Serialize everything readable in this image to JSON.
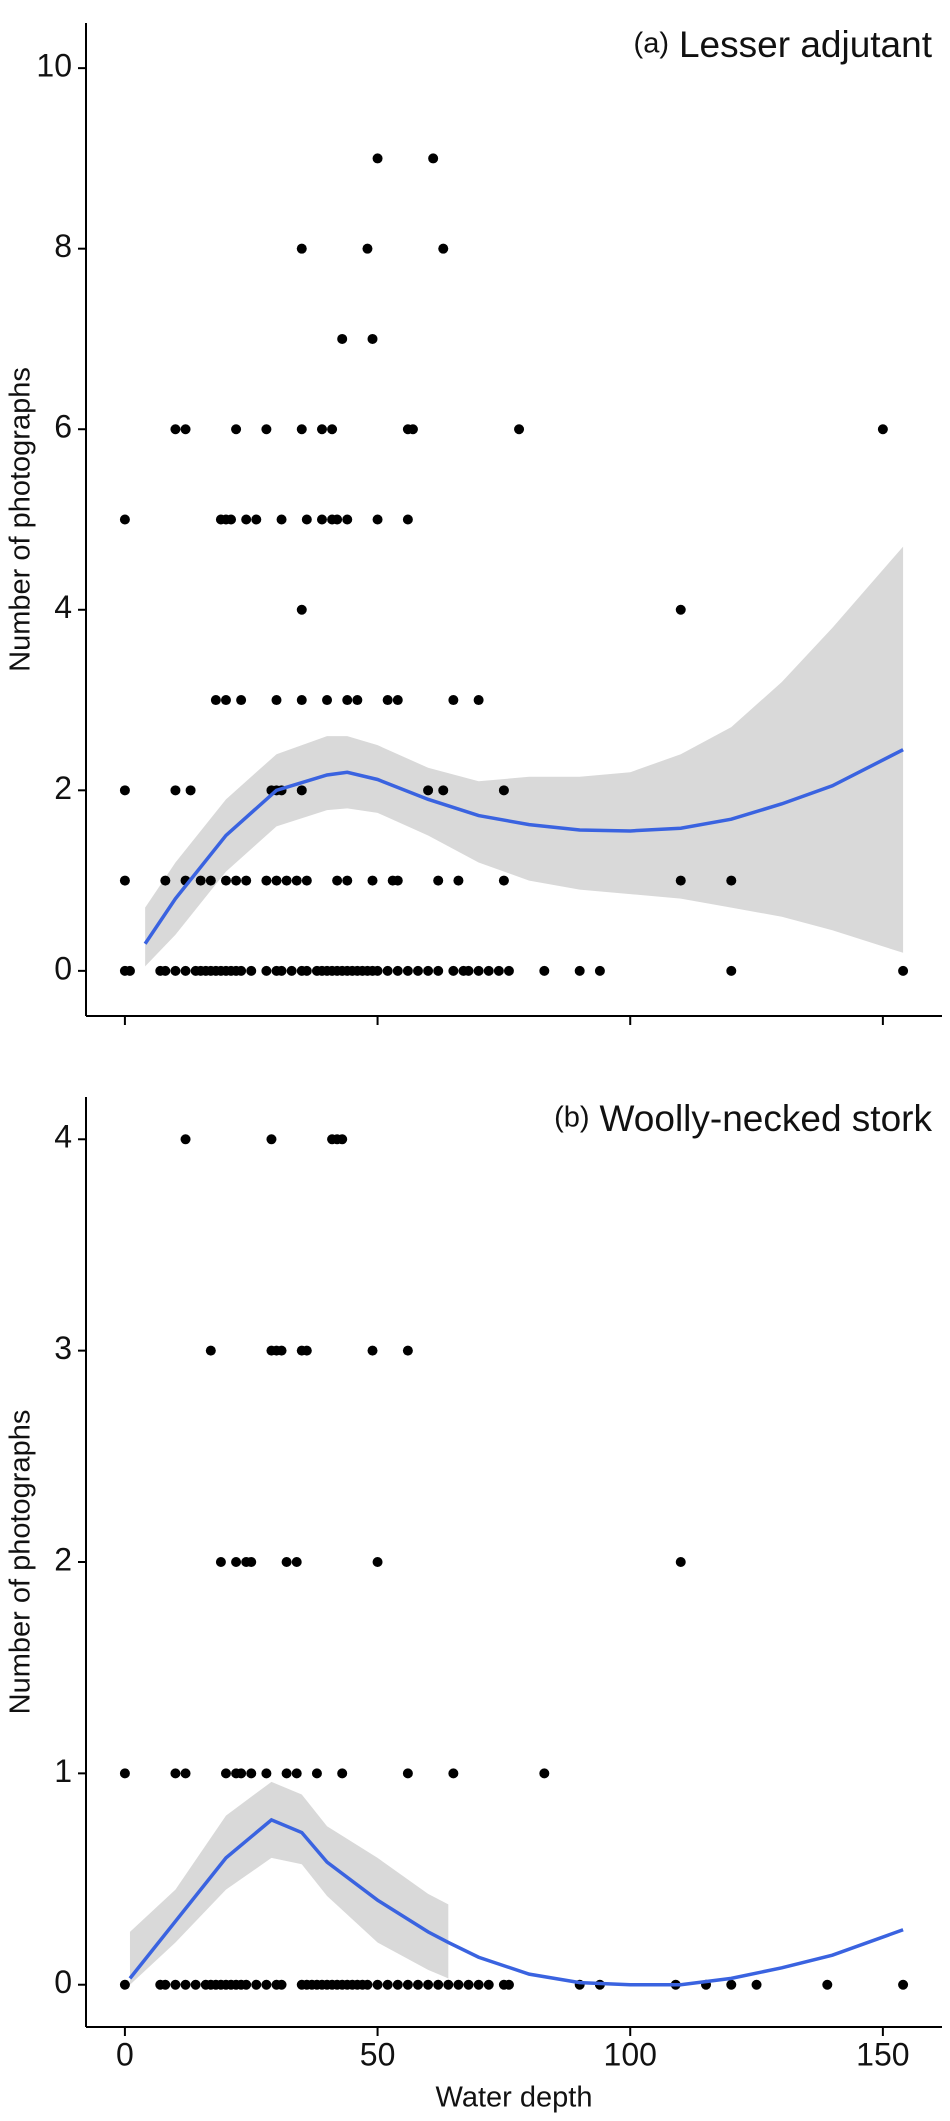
{
  "chart_data": [
    {
      "type": "scatter",
      "label": "(a)",
      "title": "Lesser adjutant",
      "ylabel": "Number of photographs",
      "xlim": [
        -7.7,
        161.7
      ],
      "ylim": [
        -0.5,
        10.5
      ],
      "xticks": [
        0,
        50,
        100,
        150
      ],
      "yticks": [
        0,
        2,
        4,
        6,
        8,
        10
      ],
      "x_tick_labels": false,
      "point_color": "#000000",
      "line_color": "#3a63e0",
      "band_color": "#d9d9d9",
      "x": [
        0,
        1,
        7,
        8,
        10,
        12,
        14,
        15,
        16,
        17,
        18,
        19,
        20,
        21,
        22,
        23,
        25,
        28,
        30,
        31,
        33,
        35,
        36,
        38,
        39,
        40,
        41,
        42,
        43,
        44,
        45,
        46,
        47,
        48,
        49,
        50,
        52,
        54,
        56,
        58,
        60,
        62,
        65,
        67,
        68,
        70,
        72,
        74,
        76,
        83,
        90,
        94,
        120,
        154,
        0,
        8,
        12,
        15,
        17,
        20,
        22,
        24,
        28,
        30,
        32,
        34,
        36,
        42,
        44,
        49,
        53,
        54,
        62,
        66,
        75,
        110,
        120,
        0,
        10,
        13,
        29,
        30,
        31,
        35,
        60,
        63,
        75,
        18,
        20,
        23,
        30,
        35,
        40,
        44,
        46,
        52,
        54,
        65,
        70,
        35,
        110,
        0,
        19,
        20,
        21,
        24,
        26,
        31,
        36,
        39,
        41,
        42,
        44,
        50,
        56,
        10,
        12,
        22,
        28,
        35,
        39,
        41,
        56,
        57,
        78,
        150,
        43,
        49,
        35,
        48,
        63,
        50,
        61
      ],
      "y": [
        0,
        0,
        0,
        0,
        0,
        0,
        0,
        0,
        0,
        0,
        0,
        0,
        0,
        0,
        0,
        0,
        0,
        0,
        0,
        0,
        0,
        0,
        0,
        0,
        0,
        0,
        0,
        0,
        0,
        0,
        0,
        0,
        0,
        0,
        0,
        0,
        0,
        0,
        0,
        0,
        0,
        0,
        0,
        0,
        0,
        0,
        0,
        0,
        0,
        0,
        0,
        0,
        0,
        0,
        1,
        1,
        1,
        1,
        1,
        1,
        1,
        1,
        1,
        1,
        1,
        1,
        1,
        1,
        1,
        1,
        1,
        1,
        1,
        1,
        1,
        1,
        1,
        2,
        2,
        2,
        2,
        2,
        2,
        2,
        2,
        2,
        2,
        3,
        3,
        3,
        3,
        3,
        3,
        3,
        3,
        3,
        3,
        3,
        3,
        4,
        4,
        5,
        5,
        5,
        5,
        5,
        5,
        5,
        5,
        5,
        5,
        5,
        5,
        5,
        5,
        6,
        6,
        6,
        6,
        6,
        6,
        6,
        6,
        6,
        6,
        6,
        7,
        7,
        8,
        8,
        8,
        9,
        9
      ],
      "fit": {
        "x": [
          4,
          10,
          20,
          30,
          40,
          44,
          50,
          60,
          70,
          80,
          90,
          100,
          110,
          120,
          130,
          140,
          154
        ],
        "values": [
          0.3,
          0.8,
          1.5,
          2.0,
          2.17,
          2.2,
          2.12,
          1.9,
          1.72,
          1.62,
          1.56,
          1.55,
          1.58,
          1.68,
          1.85,
          2.05,
          2.45
        ],
        "lower": [
          0.05,
          0.4,
          1.1,
          1.6,
          1.78,
          1.8,
          1.75,
          1.5,
          1.2,
          1.0,
          0.9,
          0.85,
          0.8,
          0.7,
          0.6,
          0.45,
          0.2
        ],
        "upper": [
          0.7,
          1.2,
          1.9,
          2.4,
          2.6,
          2.6,
          2.5,
          2.25,
          2.1,
          2.15,
          2.15,
          2.2,
          2.4,
          2.7,
          3.2,
          3.8,
          4.7
        ]
      }
    },
    {
      "type": "scatter",
      "label": "(b)",
      "title": "Woolly-necked stork",
      "ylabel": "Number of photographs",
      "xlabel": "Water depth",
      "xlim": [
        -7.7,
        161.7
      ],
      "ylim": [
        -0.2,
        4.2
      ],
      "xticks": [
        0,
        50,
        100,
        150
      ],
      "yticks": [
        0,
        1,
        2,
        3,
        4
      ],
      "x_tick_labels": true,
      "point_color": "#000000",
      "line_color": "#3a63e0",
      "band_color": "#d9d9d9",
      "x": [
        0,
        7,
        8,
        10,
        12,
        14,
        16,
        17,
        18,
        19,
        20,
        21,
        22,
        23,
        24,
        26,
        28,
        30,
        31,
        35,
        36,
        37,
        38,
        39,
        40,
        41,
        42,
        43,
        44,
        45,
        46,
        47,
        48,
        50,
        52,
        54,
        56,
        58,
        60,
        62,
        64,
        66,
        68,
        70,
        72,
        75,
        76,
        90,
        94,
        109,
        115,
        120,
        125,
        139,
        154,
        0,
        10,
        12,
        20,
        22,
        23,
        25,
        28,
        32,
        34,
        38,
        43,
        56,
        65,
        83,
        19,
        22,
        24,
        25,
        32,
        34,
        50,
        110,
        17,
        29,
        30,
        31,
        35,
        36,
        49,
        56,
        12,
        29,
        41,
        42,
        43
      ],
      "y": [
        0,
        0,
        0,
        0,
        0,
        0,
        0,
        0,
        0,
        0,
        0,
        0,
        0,
        0,
        0,
        0,
        0,
        0,
        0,
        0,
        0,
        0,
        0,
        0,
        0,
        0,
        0,
        0,
        0,
        0,
        0,
        0,
        0,
        0,
        0,
        0,
        0,
        0,
        0,
        0,
        0,
        0,
        0,
        0,
        0,
        0,
        0,
        0,
        0,
        0,
        0,
        0,
        0,
        0,
        0,
        1,
        1,
        1,
        1,
        1,
        1,
        1,
        1,
        1,
        1,
        1,
        1,
        1,
        1,
        1,
        2,
        2,
        2,
        2,
        2,
        2,
        2,
        2,
        3,
        3,
        3,
        3,
        3,
        3,
        3,
        3,
        4,
        4,
        4,
        4,
        4
      ],
      "fit": {
        "x": [
          1,
          10,
          20,
          29,
          35,
          40,
          50,
          60,
          64,
          70,
          80,
          90,
          100,
          110,
          120,
          130,
          140,
          154
        ],
        "values": [
          0.03,
          0.3,
          0.6,
          0.78,
          0.72,
          0.58,
          0.4,
          0.25,
          0.2,
          0.13,
          0.05,
          0.01,
          0,
          0,
          0.03,
          0.08,
          0.14,
          0.26
        ],
        "lower": [
          0.0,
          0.2,
          0.45,
          0.6,
          0.57,
          0.42,
          0.2,
          0.07,
          0.03,
          null,
          null,
          null,
          null,
          null,
          null,
          null,
          null,
          null
        ],
        "upper": [
          0.25,
          0.45,
          0.8,
          0.96,
          0.9,
          0.75,
          0.6,
          0.43,
          0.38,
          null,
          null,
          null,
          null,
          null,
          null,
          null,
          null,
          null
        ]
      }
    }
  ]
}
